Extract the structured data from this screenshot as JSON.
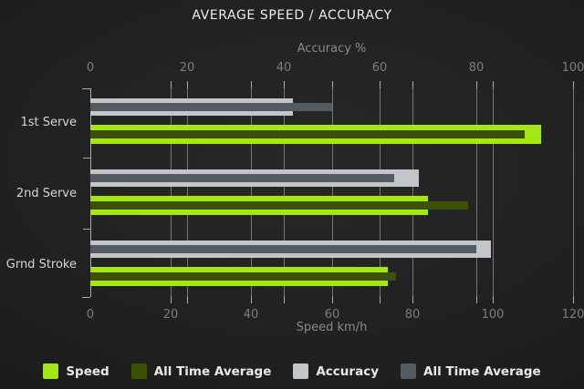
{
  "chart_data": {
    "type": "bar",
    "orientation": "horizontal",
    "title": "AVERAGE SPEED / ACCURACY",
    "categories": [
      "1st Serve",
      "2nd Serve",
      "Grnd Stroke"
    ],
    "axis_top": {
      "label": "Accuracy %",
      "min": 0,
      "max": 100,
      "ticks": [
        0,
        20,
        40,
        60,
        80,
        100
      ]
    },
    "axis_bottom": {
      "label": "Speed km/h",
      "min": 0,
      "max": 120,
      "ticks": [
        0,
        20,
        40,
        60,
        80,
        100,
        120
      ]
    },
    "series": [
      {
        "name": "Speed",
        "axis": "bottom",
        "group": "speed",
        "role": "main",
        "color": "#a4e714",
        "values": [
          112,
          84,
          74
        ]
      },
      {
        "name": "All Time Average",
        "axis": "bottom",
        "group": "speed",
        "role": "overlay",
        "color": "#3d5007",
        "values": [
          108,
          94,
          76
        ]
      },
      {
        "name": "Accuracy",
        "axis": "top",
        "group": "accuracy",
        "role": "main",
        "color": "#c2c6ca",
        "values": [
          42,
          68,
          83
        ]
      },
      {
        "name": "All Time Average",
        "axis": "top",
        "group": "accuracy",
        "role": "overlay",
        "color": "#545a62",
        "values": [
          50,
          63,
          80
        ]
      }
    ],
    "legend_position": "bottom",
    "grid": true,
    "colors": {
      "background_center": "#282828",
      "background_edge": "#141414",
      "gridline": "#767676",
      "axis": "#ababab",
      "title_text": "#ececec",
      "tick_text": "#7d7d7d",
      "category_text": "#d6d6d6",
      "legend_text": "#e9e9e9"
    }
  }
}
